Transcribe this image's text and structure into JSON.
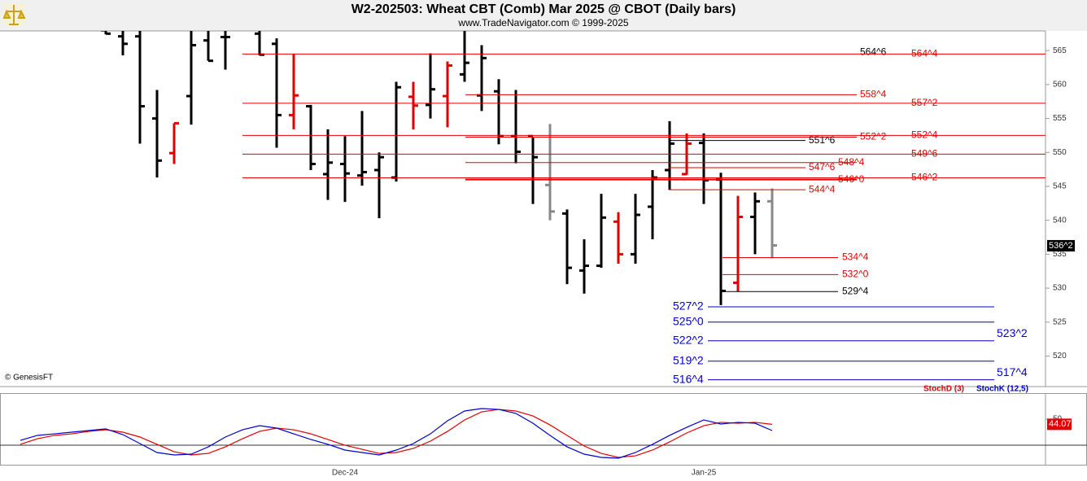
{
  "chart_data": [
    {
      "type": "ohlc",
      "title": "W2-202503:  Wheat CBT (Comb) Mar 2025 @ CBOT  (Daily bars)",
      "subtitle": "www.TradeNavigator.com © 1999-2025",
      "source": "© GenesisFT",
      "ylim": [
        515.5,
        567.9
      ],
      "yticks": [
        520,
        525,
        530,
        535,
        540,
        545,
        550,
        555,
        560,
        565
      ],
      "open": [
        null,
        null,
        null,
        null,
        null,
        568,
        567.1,
        567.1,
        555,
        549.9,
        558.3,
        566.5,
        567,
        null,
        567.5,
        566,
        555.5,
        556.8,
        546.8,
        548.3,
        546.6,
        547.4,
        546.3,
        558.2,
        557,
        558.3,
        561.5,
        558.4,
        559,
        552.4,
        552.4,
        545.2,
        541,
        532.6,
        533.3,
        539.8,
        535,
        542,
        547.4,
        546.8,
        551.4,
        546,
        530.8,
        540.5,
        542.8
      ],
      "high": [
        null,
        null,
        null,
        null,
        null,
        568.5,
        568.5,
        568.5,
        559.2,
        554.3,
        568.5,
        568.5,
        568.5,
        null,
        568.5,
        566.8,
        564.5,
        557,
        553.4,
        552.4,
        556.1,
        550,
        560.4,
        560.4,
        564.6,
        563.4,
        568.5,
        565.8,
        560.8,
        559.2,
        552.3,
        554.2,
        541.6,
        537.2,
        543.9,
        541.2,
        543.9,
        547.4,
        554.6,
        552.8,
        552.8,
        547,
        543.6,
        544.1,
        544.7
      ],
      "low": [
        null,
        null,
        null,
        null,
        null,
        567.4,
        564.3,
        551.3,
        546.3,
        548.3,
        554.1,
        563.5,
        562.2,
        null,
        564.3,
        550.7,
        553.4,
        547.4,
        543,
        542.7,
        545.1,
        540.3,
        545.7,
        553.4,
        555,
        553.7,
        560.4,
        556.1,
        551.2,
        548.4,
        542.4,
        540,
        530.6,
        529.2,
        533,
        533.6,
        533.6,
        537.2,
        544.5,
        546.7,
        542.4,
        527.5,
        529.5,
        535,
        534.4
      ],
      "close": [
        null,
        null,
        null,
        null,
        null,
        567.5,
        566,
        556.8,
        548.8,
        554.3,
        565.8,
        563.5,
        567,
        null,
        564.4,
        555.5,
        558.4,
        548.3,
        548.5,
        546.9,
        547.1,
        549.3,
        559.6,
        556.9,
        559.3,
        562.8,
        563.2,
        563.9,
        552.4,
        550.1,
        549.3,
        541.3,
        533,
        533.3,
        540.4,
        535,
        540.8,
        546.3,
        551.3,
        551.3,
        545.9,
        529.6,
        540.5,
        542.8,
        536.3
      ],
      "colors": [
        null,
        null,
        null,
        null,
        null,
        "#000",
        "#000",
        "#000",
        "#000",
        "#e00000",
        "#000",
        "#000",
        "#000",
        null,
        "#000",
        "#000",
        "#e00000",
        "#000",
        "#000",
        "#000",
        "#000",
        "#000",
        "#000",
        "#e00000",
        "#000",
        "#e00000",
        "#000",
        "#000",
        "#000",
        "#000",
        "#000",
        "#888",
        "#000",
        "#000",
        "#000",
        "#e00000",
        "#000",
        "#000",
        "#000",
        "#e00000",
        "#000",
        "#000",
        "#e00000",
        "#000",
        "#888"
      ],
      "levels": [
        {
          "label": "564^6",
          "value": 564.75,
          "color": "#000"
        },
        {
          "label": "564^4",
          "value": 564.5,
          "color": "#e00000"
        },
        {
          "label": "558^4",
          "value": 558.5,
          "color": "#e00000"
        },
        {
          "label": "557^2",
          "value": 557.25,
          "color": "#e00000"
        },
        {
          "label": "552^2",
          "value": 552.25,
          "color": "#e00000"
        },
        {
          "label": "552^4",
          "value": 552.5,
          "color": "#e00000"
        },
        {
          "label": "551^6",
          "value": 551.75,
          "color": "#000"
        },
        {
          "label": "549^6",
          "value": 549.75,
          "color": "#e00000"
        },
        {
          "label": "548^4",
          "value": 548.5,
          "color": "#e00000"
        },
        {
          "label": "547^6",
          "value": 547.75,
          "color": "#e00000"
        },
        {
          "label": "546^2",
          "value": 546.25,
          "color": "#e00000"
        },
        {
          "label": "546^0",
          "value": 546.0,
          "color": "#e00000"
        },
        {
          "label": "544^4",
          "value": 544.5,
          "color": "#e00000"
        },
        {
          "label": "534^4",
          "value": 534.5,
          "color": "#e00000"
        },
        {
          "label": "532^0",
          "value": 532.0,
          "color": "#e00000"
        },
        {
          "label": "529^4",
          "value": 529.5,
          "color": "#000"
        },
        {
          "label": "527^2",
          "value": 527.25,
          "color": "#0000cc"
        },
        {
          "label": "525^0",
          "value": 525.0,
          "color": "#0000cc"
        },
        {
          "label": "523^2",
          "value": 523.25,
          "color": "#0000cc"
        },
        {
          "label": "522^2",
          "value": 522.25,
          "color": "#0000cc"
        },
        {
          "label": "519^2",
          "value": 519.25,
          "color": "#0000cc"
        },
        {
          "label": "517^4",
          "value": 517.5,
          "color": "#0000cc"
        },
        {
          "label": "516^4",
          "value": 516.5,
          "color": "#0000cc"
        }
      ],
      "last_price": {
        "label": "536^2",
        "value": 536.25
      }
    },
    {
      "type": "line",
      "categories": [
        null,
        null,
        null,
        null,
        null,
        null,
        null,
        null,
        null,
        null,
        null,
        null,
        null,
        null,
        null,
        null,
        null,
        null,
        null,
        "Dec-24",
        null,
        null,
        null,
        null,
        null,
        null,
        null,
        null,
        null,
        null,
        null,
        null,
        null,
        null,
        null,
        null,
        null,
        null,
        null,
        null,
        "Jan-25",
        null,
        null,
        null,
        null
      ],
      "ylim": [
        -3.4,
        80
      ],
      "yticks": [
        50
      ],
      "reference_line": 20,
      "series": [
        {
          "name": "StochD (3)",
          "color": "#e00000",
          "values": [
            21.0,
            27.5,
            31.3,
            33.1,
            35.9,
            37.8,
            35.0,
            29.4,
            21.0,
            12.5,
            8.8,
            10.6,
            18.1,
            27.5,
            35.9,
            39.7,
            37.8,
            33.1,
            26.6,
            20.0,
            15.3,
            10.6,
            11.6,
            16.3,
            24.7,
            35.9,
            49.1,
            58.4,
            61.2,
            59.4,
            53.7,
            43.4,
            31.3,
            19.1,
            10.6,
            6.0,
            7.8,
            14.4,
            23.8,
            34.1,
            42.5,
            46.3,
            45.3,
            46.3,
            44.07
          ],
          "value_labels": [
            null,
            null,
            null,
            null,
            null,
            null,
            null,
            null,
            null,
            null,
            null,
            null,
            null,
            null,
            null,
            null,
            null,
            null,
            null,
            null,
            null,
            null,
            null,
            null,
            null,
            null,
            null,
            null,
            null,
            null,
            null,
            null,
            null,
            null,
            null,
            null,
            null,
            null,
            null,
            null,
            null,
            null,
            null,
            null,
            "44.07"
          ]
        },
        {
          "name": "StochK (12,5)",
          "color": "#0000cc",
          "values": [
            25.6,
            31.3,
            33.1,
            35.0,
            36.9,
            38.8,
            32.2,
            21.9,
            11.6,
            8.8,
            9.7,
            18.1,
            29.4,
            37.8,
            42.5,
            39.7,
            33.1,
            26.6,
            21.0,
            14.4,
            11.6,
            8.8,
            14.4,
            21.9,
            33.1,
            48.1,
            59.4,
            62.2,
            61.2,
            56.6,
            45.3,
            31.3,
            18.1,
            9.7,
            6.0,
            5.0,
            11.6,
            21.0,
            31.3,
            40.6,
            49.1,
            44.4,
            46.3,
            45.3,
            36.9
          ]
        }
      ]
    }
  ]
}
